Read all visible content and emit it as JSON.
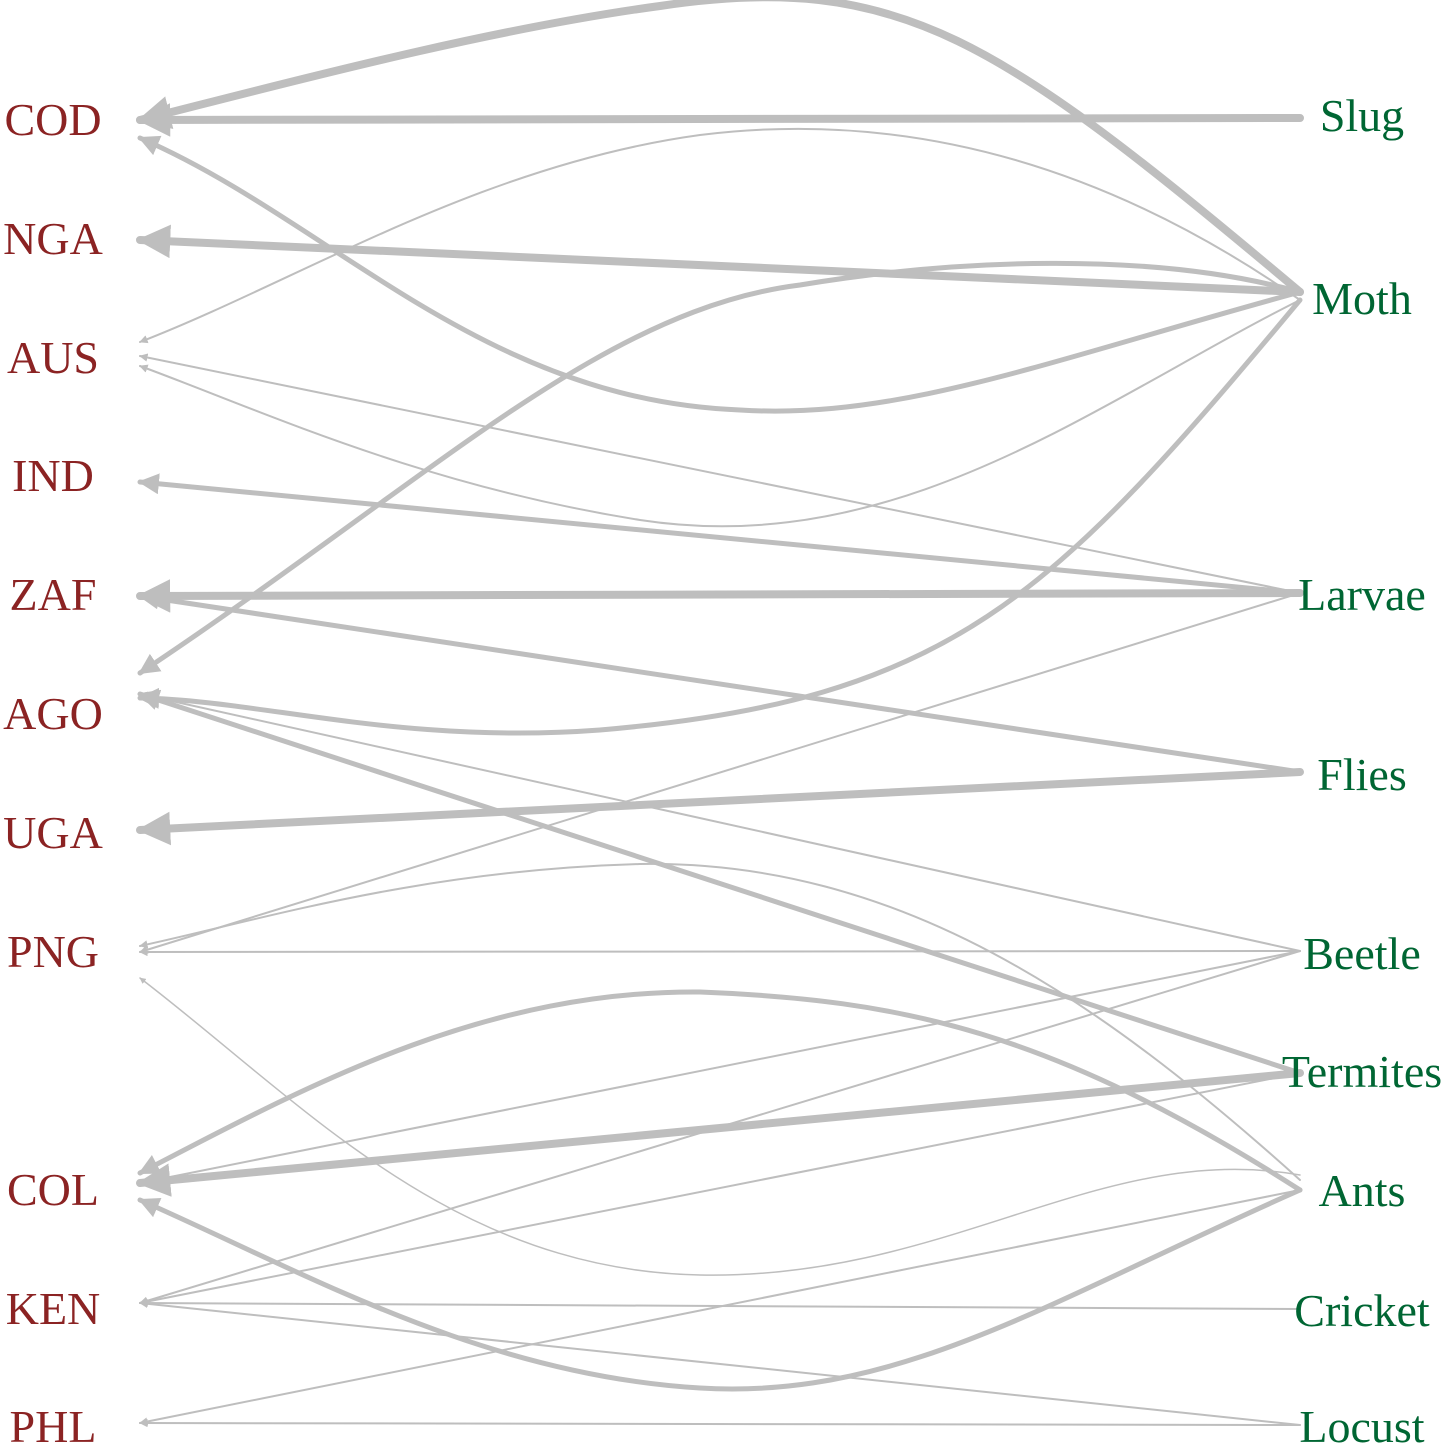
{
  "colors": {
    "country": "#8b2323",
    "insect": "#006633",
    "edge": "#bebebe"
  },
  "countries": [
    {
      "id": "COD",
      "label": "COD"
    },
    {
      "id": "NGA",
      "label": "NGA"
    },
    {
      "id": "AUS",
      "label": "AUS"
    },
    {
      "id": "IND",
      "label": "IND"
    },
    {
      "id": "ZAF",
      "label": "ZAF"
    },
    {
      "id": "AGO",
      "label": "AGO"
    },
    {
      "id": "UGA",
      "label": "UGA"
    },
    {
      "id": "PNG",
      "label": "PNG"
    },
    {
      "id": "COL",
      "label": "COL"
    },
    {
      "id": "KEN",
      "label": "KEN"
    },
    {
      "id": "PHL",
      "label": "PHL"
    }
  ],
  "insects": [
    {
      "id": "Slug",
      "label": "Slug"
    },
    {
      "id": "Moth",
      "label": "Moth"
    },
    {
      "id": "Larvae",
      "label": "Larvae"
    },
    {
      "id": "Flies",
      "label": "Flies"
    },
    {
      "id": "Beetle",
      "label": "Beetle"
    },
    {
      "id": "Termites",
      "label": "Termites"
    },
    {
      "id": "Ants",
      "label": "Ants"
    },
    {
      "id": "Cricket",
      "label": "Cricket"
    },
    {
      "id": "Locust",
      "label": "Locust"
    }
  ],
  "edges": [
    {
      "from": "Slug",
      "to": "COD",
      "weight": 3
    },
    {
      "from": "Moth",
      "to": "COD",
      "weight": 3
    },
    {
      "from": "Moth",
      "to": "NGA",
      "weight": 3
    },
    {
      "from": "Moth",
      "to": "AUS",
      "weight": 1
    },
    {
      "from": "Moth",
      "to": "AGO",
      "weight": 2
    },
    {
      "from": "Larvae",
      "to": "AUS",
      "weight": 1
    },
    {
      "from": "Larvae",
      "to": "IND",
      "weight": 2
    },
    {
      "from": "Larvae",
      "to": "ZAF",
      "weight": 3
    },
    {
      "from": "Larvae",
      "to": "PNG",
      "weight": 1
    },
    {
      "from": "Flies",
      "to": "ZAF",
      "weight": 2
    },
    {
      "from": "Flies",
      "to": "UGA",
      "weight": 3
    },
    {
      "from": "Beetle",
      "to": "AGO",
      "weight": 1
    },
    {
      "from": "Beetle",
      "to": "PNG",
      "weight": 1
    },
    {
      "from": "Beetle",
      "to": "COL",
      "weight": 1
    },
    {
      "from": "Beetle",
      "to": "KEN",
      "weight": 1
    },
    {
      "from": "Termites",
      "to": "AGO",
      "weight": 2
    },
    {
      "from": "Termites",
      "to": "COL",
      "weight": 3
    },
    {
      "from": "Termites",
      "to": "KEN",
      "weight": 1
    },
    {
      "from": "Ants",
      "to": "PNG",
      "weight": 1
    },
    {
      "from": "Ants",
      "to": "COL",
      "weight": 2
    },
    {
      "from": "Ants",
      "to": "PHL",
      "weight": 1
    },
    {
      "from": "Cricket",
      "to": "KEN",
      "weight": 1
    },
    {
      "from": "Locust",
      "to": "KEN",
      "weight": 1
    },
    {
      "from": "Locust",
      "to": "PHL",
      "weight": 1
    }
  ]
}
